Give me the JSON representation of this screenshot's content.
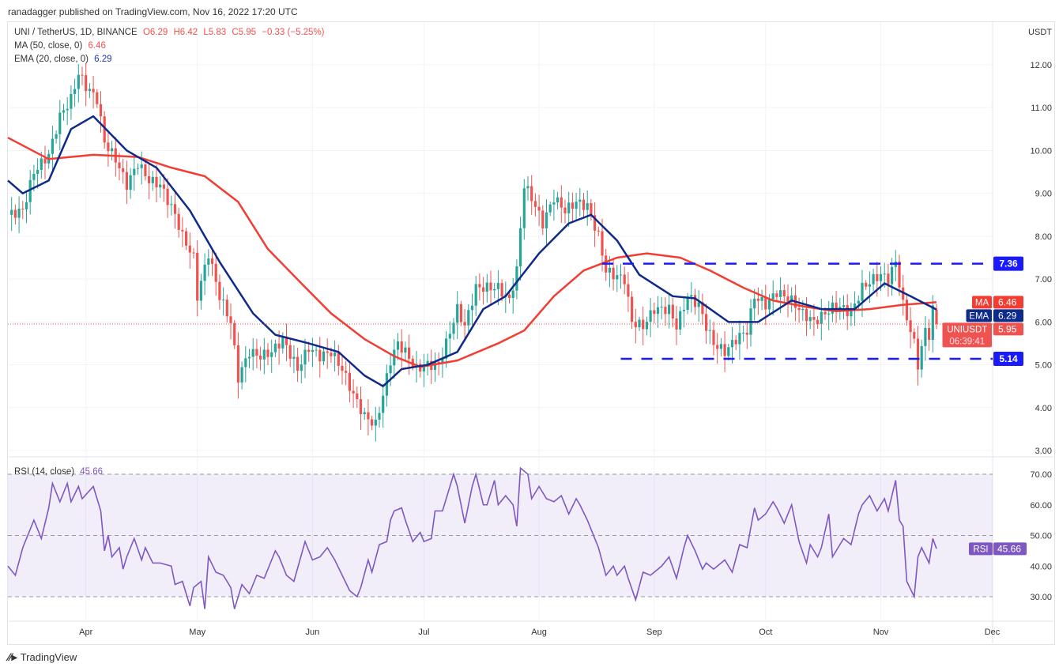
{
  "publisher_line": "ranadagger published on TradingView.com, Nov 16, 2022 17:20 UTC",
  "legend": {
    "symbol": "UNI / TetherUS, 1D, BINANCE",
    "open": "O6.29",
    "high": "H6.42",
    "low": "L5.83",
    "close": "C5.95",
    "change": "−0.33 (−5.25%)",
    "ma_label": "MA (50, close, 0)",
    "ma_value": "6.46",
    "ema_label": "EMA (20, close, 0)",
    "ema_value": "6.29",
    "rsi_label": "RSI (14, close)",
    "rsi_value": "45.66"
  },
  "footer": {
    "brand": "TradingView"
  },
  "colors": {
    "up": "#26a69a",
    "down": "#ef5350",
    "ma": "#f23d32",
    "ema": "#0e2a8a",
    "rsi": "#7e57c2",
    "level": "#1a1aff"
  },
  "chart_data": {
    "type": "candlestick",
    "title": "UNI / TetherUS, 1D, BINANCE",
    "x_unit": "days since 2022-03-11",
    "currency_label": "USDT",
    "y_ticks": [
      "3.00",
      "4.00",
      "5.00",
      "6.00",
      "7.00",
      "8.00",
      "9.00",
      "10.00",
      "11.00",
      "12.00"
    ],
    "ylim": [
      2.8,
      12.8
    ],
    "x_ticks": [
      {
        "day": 21,
        "label": "Apr"
      },
      {
        "day": 51,
        "label": "May"
      },
      {
        "day": 82,
        "label": "Jun"
      },
      {
        "day": 112,
        "label": "Jul"
      },
      {
        "day": 143,
        "label": "Aug"
      },
      {
        "day": 174,
        "label": "Sep"
      },
      {
        "day": 204,
        "label": "Oct"
      },
      {
        "day": 235,
        "label": "Nov"
      },
      {
        "day": 265,
        "label": "Dec"
      }
    ],
    "last_candle": {
      "open": 6.29,
      "high": 6.42,
      "low": 5.83,
      "close": 5.95
    },
    "close_points": [
      [
        0,
        8.5
      ],
      [
        4,
        8.6
      ],
      [
        7,
        9.5
      ],
      [
        11,
        9.9
      ],
      [
        14,
        10.8
      ],
      [
        17,
        11.2
      ],
      [
        19,
        11.8
      ],
      [
        21,
        11.5
      ],
      [
        24,
        11.2
      ],
      [
        26,
        10.2
      ],
      [
        29,
        9.8
      ],
      [
        32,
        9.2
      ],
      [
        35,
        9.7
      ],
      [
        38,
        9.3
      ],
      [
        41,
        9.2
      ],
      [
        45,
        8.5
      ],
      [
        47,
        8.0
      ],
      [
        50,
        7.5
      ],
      [
        51,
        6.6
      ],
      [
        54,
        7.6
      ],
      [
        57,
        6.6
      ],
      [
        60,
        6.0
      ],
      [
        62,
        4.7
      ],
      [
        65,
        5.3
      ],
      [
        68,
        5.2
      ],
      [
        71,
        5.3
      ],
      [
        74,
        5.6
      ],
      [
        78,
        4.9
      ],
      [
        81,
        5.4
      ],
      [
        84,
        5.2
      ],
      [
        87,
        5.3
      ],
      [
        90,
        4.9
      ],
      [
        93,
        4.3
      ],
      [
        96,
        3.8
      ],
      [
        99,
        3.6
      ],
      [
        101,
        4.3
      ],
      [
        103,
        5.1
      ],
      [
        105,
        5.5
      ],
      [
        107,
        5.3
      ],
      [
        110,
        4.9
      ],
      [
        113,
        5.0
      ],
      [
        116,
        5.0
      ],
      [
        118,
        5.5
      ],
      [
        121,
        6.3
      ],
      [
        123,
        5.9
      ],
      [
        126,
        6.8
      ],
      [
        129,
        6.8
      ],
      [
        132,
        6.8
      ],
      [
        135,
        6.5
      ],
      [
        137,
        7.2
      ],
      [
        139,
        9.2
      ],
      [
        141,
        8.9
      ],
      [
        144,
        8.3
      ],
      [
        147,
        8.9
      ],
      [
        150,
        8.6
      ],
      [
        153,
        8.8
      ],
      [
        156,
        8.7
      ],
      [
        159,
        8.0
      ],
      [
        161,
        7.2
      ],
      [
        163,
        7.1
      ],
      [
        166,
        7.0
      ],
      [
        168,
        6.0
      ],
      [
        171,
        5.9
      ],
      [
        174,
        6.3
      ],
      [
        178,
        6.3
      ],
      [
        180,
        5.9
      ],
      [
        183,
        6.6
      ],
      [
        186,
        6.4
      ],
      [
        188,
        5.9
      ],
      [
        190,
        5.5
      ],
      [
        193,
        5.3
      ],
      [
        196,
        5.6
      ],
      [
        199,
        5.8
      ],
      [
        201,
        6.6
      ],
      [
        204,
        6.4
      ],
      [
        207,
        6.7
      ],
      [
        211,
        6.5
      ],
      [
        214,
        6.2
      ],
      [
        217,
        6.0
      ],
      [
        220,
        6.2
      ],
      [
        223,
        6.4
      ],
      [
        227,
        6.2
      ],
      [
        230,
        6.8
      ],
      [
        233,
        7.0
      ],
      [
        235,
        7.1
      ],
      [
        237,
        7.0
      ],
      [
        239,
        7.4
      ],
      [
        241,
        6.4
      ],
      [
        244,
        5.5
      ],
      [
        245,
        5.0
      ],
      [
        247,
        5.8
      ],
      [
        248,
        5.7
      ],
      [
        249,
        6.29
      ],
      [
        250,
        5.95
      ]
    ],
    "series": [
      {
        "name": "MA (50, close, 0)",
        "points": [
          [
            0,
            10.3
          ],
          [
            11,
            9.8
          ],
          [
            23,
            9.9
          ],
          [
            35,
            9.85
          ],
          [
            44,
            9.6
          ],
          [
            53,
            9.4
          ],
          [
            62,
            8.8
          ],
          [
            70,
            7.7
          ],
          [
            79,
            6.9
          ],
          [
            87,
            6.2
          ],
          [
            96,
            5.6
          ],
          [
            104,
            5.2
          ],
          [
            111,
            4.95
          ],
          [
            121,
            5.1
          ],
          [
            132,
            5.5
          ],
          [
            139,
            5.8
          ],
          [
            147,
            6.6
          ],
          [
            155,
            7.2
          ],
          [
            164,
            7.5
          ],
          [
            172,
            7.6
          ],
          [
            181,
            7.5
          ],
          [
            189,
            7.2
          ],
          [
            198,
            6.8
          ],
          [
            206,
            6.5
          ],
          [
            215,
            6.35
          ],
          [
            223,
            6.25
          ],
          [
            232,
            6.3
          ],
          [
            241,
            6.4
          ],
          [
            250,
            6.46
          ]
        ]
      },
      {
        "name": "EMA (20, close, 0)",
        "points": [
          [
            0,
            9.3
          ],
          [
            4,
            9.0
          ],
          [
            11,
            9.3
          ],
          [
            17,
            10.5
          ],
          [
            23,
            10.8
          ],
          [
            32,
            10.0
          ],
          [
            40,
            9.6
          ],
          [
            49,
            8.6
          ],
          [
            57,
            7.4
          ],
          [
            66,
            6.2
          ],
          [
            72,
            5.7
          ],
          [
            81,
            5.5
          ],
          [
            89,
            5.3
          ],
          [
            96,
            4.75
          ],
          [
            101,
            4.5
          ],
          [
            106,
            4.9
          ],
          [
            113,
            5.0
          ],
          [
            121,
            5.3
          ],
          [
            128,
            6.3
          ],
          [
            134,
            6.6
          ],
          [
            143,
            7.6
          ],
          [
            151,
            8.3
          ],
          [
            157,
            8.5
          ],
          [
            164,
            7.9
          ],
          [
            170,
            7.1
          ],
          [
            179,
            6.6
          ],
          [
            185,
            6.55
          ],
          [
            194,
            6.0
          ],
          [
            202,
            6.0
          ],
          [
            211,
            6.5
          ],
          [
            219,
            6.3
          ],
          [
            228,
            6.3
          ],
          [
            236,
            6.9
          ],
          [
            243,
            6.6
          ],
          [
            250,
            6.29
          ]
        ]
      }
    ],
    "levels": [
      {
        "value": 7.36,
        "label": "7.36",
        "from_day": 160
      },
      {
        "value": 5.14,
        "label": "5.14",
        "from_day": 165
      }
    ],
    "price_tags": [
      {
        "name": "MA",
        "value": "6.46",
        "v": 6.46
      },
      {
        "name": "EMA",
        "value": "6.29",
        "v": 6.29
      },
      {
        "name": "UNIUSDT",
        "value": "5.95",
        "v": 5.95,
        "countdown": "06:39:41"
      }
    ],
    "rsi": {
      "name": "RSI (14, close)",
      "ylim": [
        22,
        78
      ],
      "band": [
        30,
        70
      ],
      "y_ticks": [
        "30.00",
        "40.00",
        "50.00",
        "60.00",
        "70.00"
      ],
      "tag": {
        "name": "RSI",
        "value": "45.66",
        "v": 45.66
      },
      "points": [
        [
          0,
          40
        ],
        [
          2,
          37
        ],
        [
          4,
          46
        ],
        [
          6,
          52
        ],
        [
          7,
          55
        ],
        [
          9,
          49
        ],
        [
          11,
          59
        ],
        [
          12,
          67
        ],
        [
          14,
          61
        ],
        [
          16,
          67
        ],
        [
          17,
          61
        ],
        [
          19,
          66
        ],
        [
          20,
          62
        ],
        [
          23,
          66
        ],
        [
          25,
          58
        ],
        [
          26,
          45
        ],
        [
          27,
          50
        ],
        [
          28,
          43
        ],
        [
          30,
          46
        ],
        [
          31,
          39
        ],
        [
          32,
          43
        ],
        [
          34,
          49
        ],
        [
          36,
          42
        ],
        [
          37,
          46
        ],
        [
          39,
          41
        ],
        [
          41,
          41
        ],
        [
          44,
          40
        ],
        [
          45,
          34
        ],
        [
          47,
          35
        ],
        [
          49,
          27
        ],
        [
          50,
          33
        ],
        [
          52,
          35
        ],
        [
          53,
          26
        ],
        [
          54,
          43
        ],
        [
          56,
          38
        ],
        [
          58,
          37
        ],
        [
          60,
          33
        ],
        [
          61,
          26
        ],
        [
          63,
          34
        ],
        [
          65,
          31
        ],
        [
          67,
          37
        ],
        [
          69,
          36
        ],
        [
          72,
          45
        ],
        [
          73,
          43
        ],
        [
          75,
          37
        ],
        [
          77,
          35
        ],
        [
          80,
          48
        ],
        [
          82,
          42
        ],
        [
          84,
          43
        ],
        [
          86,
          46
        ],
        [
          88,
          42
        ],
        [
          90,
          37
        ],
        [
          92,
          32
        ],
        [
          94,
          30
        ],
        [
          95,
          33
        ],
        [
          97,
          42
        ],
        [
          98,
          38
        ],
        [
          100,
          47
        ],
        [
          102,
          48
        ],
        [
          103,
          55
        ],
        [
          104,
          58
        ],
        [
          106,
          59
        ],
        [
          107,
          55
        ],
        [
          109,
          48
        ],
        [
          111,
          51
        ],
        [
          112,
          48
        ],
        [
          114,
          49
        ],
        [
          115,
          58
        ],
        [
          117,
          58
        ],
        [
          118,
          62
        ],
        [
          120,
          70
        ],
        [
          121,
          66
        ],
        [
          123,
          54
        ],
        [
          125,
          66
        ],
        [
          126,
          70
        ],
        [
          128,
          60
        ],
        [
          129,
          60
        ],
        [
          131,
          68
        ],
        [
          132,
          60
        ],
        [
          134,
          63
        ],
        [
          136,
          60
        ],
        [
          137,
          53
        ],
        [
          138,
          72
        ],
        [
          140,
          70
        ],
        [
          141,
          62
        ],
        [
          143,
          66
        ],
        [
          145,
          62
        ],
        [
          147,
          61
        ],
        [
          149,
          63
        ],
        [
          151,
          57
        ],
        [
          153,
          62
        ],
        [
          154,
          60
        ],
        [
          156,
          55
        ],
        [
          159,
          46
        ],
        [
          161,
          37
        ],
        [
          163,
          40
        ],
        [
          164,
          37
        ],
        [
          166,
          40
        ],
        [
          167,
          36
        ],
        [
          169,
          29
        ],
        [
          171,
          38
        ],
        [
          173,
          37
        ],
        [
          176,
          40
        ],
        [
          178,
          43
        ],
        [
          180,
          36
        ],
        [
          182,
          46
        ],
        [
          183,
          50
        ],
        [
          185,
          45
        ],
        [
          187,
          39
        ],
        [
          188,
          41
        ],
        [
          190,
          39
        ],
        [
          193,
          42
        ],
        [
          195,
          38
        ],
        [
          197,
          47
        ],
        [
          199,
          46
        ],
        [
          201,
          59
        ],
        [
          202,
          55
        ],
        [
          204,
          57
        ],
        [
          206,
          61
        ],
        [
          207,
          59
        ],
        [
          209,
          54
        ],
        [
          211,
          60
        ],
        [
          213,
          48
        ],
        [
          215,
          41
        ],
        [
          216,
          47
        ],
        [
          218,
          43
        ],
        [
          219,
          46
        ],
        [
          221,
          57
        ],
        [
          222,
          43
        ],
        [
          223,
          45
        ],
        [
          225,
          49
        ],
        [
          227,
          47
        ],
        [
          229,
          57
        ],
        [
          230,
          60
        ],
        [
          232,
          63
        ],
        [
          234,
          58
        ],
        [
          236,
          62
        ],
        [
          237,
          58
        ],
        [
          239,
          68
        ],
        [
          240,
          55
        ],
        [
          241,
          53
        ],
        [
          242,
          35
        ],
        [
          244,
          30
        ],
        [
          245,
          43
        ],
        [
          246,
          46
        ],
        [
          248,
          41
        ],
        [
          249,
          49
        ],
        [
          250,
          45.66
        ]
      ]
    }
  }
}
